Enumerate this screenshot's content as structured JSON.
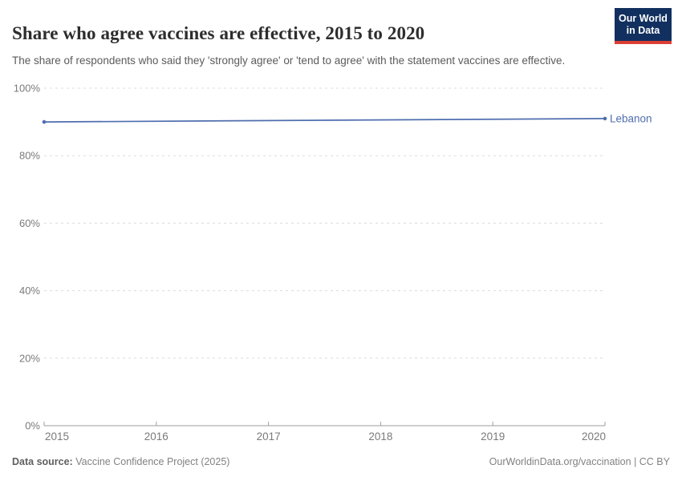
{
  "header": {
    "title": "Share who agree vaccines are effective, 2015 to 2020",
    "subtitle": "The share of respondents who said they 'strongly agree' or 'tend to agree' with the statement vaccines are effective."
  },
  "logo": {
    "line1": "Our World",
    "line2": "in Data",
    "bg_color": "#12305f",
    "accent_color": "#dc3f34"
  },
  "chart_data": {
    "type": "line",
    "title": "Share who agree vaccines are effective, 2015 to 2020",
    "x": [
      2015,
      2020
    ],
    "series": [
      {
        "name": "Lebanon",
        "color": "#4f6eaf",
        "values": [
          90,
          91
        ]
      }
    ],
    "x_ticks": [
      2015,
      2016,
      2017,
      2018,
      2019,
      2020
    ],
    "y_ticks": [
      0,
      20,
      40,
      60,
      80,
      100
    ],
    "y_tick_suffix": "%",
    "xlim": [
      2015,
      2020
    ],
    "ylim": [
      0,
      100
    ],
    "grid": "horizontal-dashed",
    "legend": "line-end-label",
    "colors": {
      "gridline": "#dcdcdc",
      "axis": "#9e9e9e",
      "tick_label": "#7a7a7a"
    }
  },
  "footer": {
    "datasource_label": "Data source:",
    "datasource_value": "Vaccine Confidence Project (2025)",
    "attribution": "OurWorldinData.org/vaccination | CC BY"
  }
}
